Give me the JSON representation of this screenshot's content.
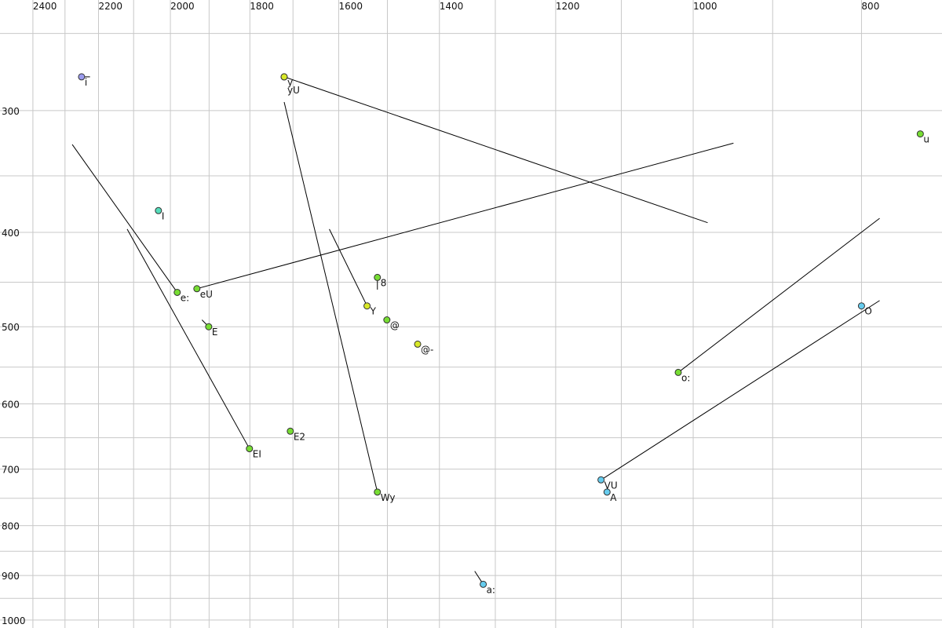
{
  "chart_data": {
    "type": "scatter",
    "xscale": "log",
    "yscale": "log",
    "xlim": [
      2507,
      719
    ],
    "ylim": [
      231,
      1019
    ],
    "xticks": [
      2400,
      2200,
      2000,
      1800,
      1600,
      1400,
      1200,
      1000,
      800
    ],
    "yticks": [
      300,
      400,
      500,
      600,
      700,
      800,
      900,
      1000
    ],
    "xgrid": [
      2300,
      2100,
      1900,
      1700,
      1500,
      1300,
      1100,
      900
    ],
    "ygrid": [
      250,
      350,
      450,
      550,
      650,
      750,
      850,
      950
    ],
    "grid": true,
    "labels": [
      "i",
      "y",
      "yU",
      "u",
      "I",
      "e:",
      "eU",
      "E",
      "EI",
      "E2",
      "8",
      "Y",
      "@",
      "@-",
      "Wy",
      "o:",
      "O",
      "VU",
      "A",
      "a:"
    ],
    "x": [
      2250,
      1720,
      1720,
      740,
      2032,
      1982,
      1931,
      1901,
      1801,
      1706,
      1520,
      1541,
      1501,
      1441,
      1520,
      1020,
      800,
      1130,
      1121,
      1321
    ],
    "y": [
      277,
      277,
      277,
      317,
      380,
      461,
      457,
      500,
      667,
      640,
      445,
      476,
      492,
      521,
      739,
      557,
      476,
      718,
      739,
      919
    ],
    "colors": [
      "#9b9bee",
      "#d8e828",
      "#d8e828",
      "#77dd33",
      "#55ddbb",
      "#77dd33",
      "#77dd33",
      "#77dd33",
      "#77dd33",
      "#77dd33",
      "#77dd33",
      "#d8e828",
      "#77dd33",
      "#d8e828",
      "#77dd33",
      "#77dd33",
      "#66ccee",
      "#66ccee",
      "#66ccee",
      "#66ccee"
    ],
    "lines": [
      {
        "x": [
          2250,
          2225
        ],
        "y": [
          277,
          277
        ]
      },
      {
        "x": [
          1720,
          981
        ],
        "y": [
          277,
          391
        ]
      },
      {
        "x": [
          1720,
          1520
        ],
        "y": [
          294,
          739
        ]
      },
      {
        "x": [
          2278,
          1982
        ],
        "y": [
          325,
          461
        ]
      },
      {
        "x": [
          1931,
          948
        ],
        "y": [
          457,
          324
        ]
      },
      {
        "x": [
          1918,
          1901
        ],
        "y": [
          492,
          500
        ]
      },
      {
        "x": [
          2118,
          1801
        ],
        "y": [
          397,
          667
        ]
      },
      {
        "x": [
          1620,
          1541
        ],
        "y": [
          397,
          476
        ]
      },
      {
        "x": [
          1520,
          1520
        ],
        "y": [
          445,
          458
        ]
      },
      {
        "x": [
          1020,
          781
        ],
        "y": [
          557,
          387
        ]
      },
      {
        "x": [
          1130,
          781
        ],
        "y": [
          718,
          470
        ]
      },
      {
        "x": [
          1336,
          1321
        ],
        "y": [
          891,
          919
        ]
      }
    ]
  }
}
